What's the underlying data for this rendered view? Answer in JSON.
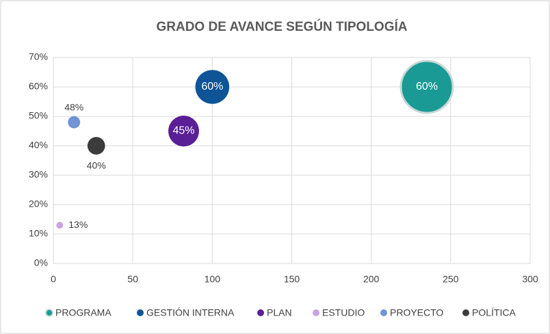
{
  "chart_data": {
    "type": "bubble",
    "title": "GRADO DE AVANCE SEGÚN TIPOLOGÍA",
    "xlim": [
      0,
      300
    ],
    "xticks": [
      0,
      50,
      100,
      150,
      200,
      250,
      300
    ],
    "ylim": [
      0,
      70
    ],
    "yticks": [
      {
        "value": 0,
        "label": "0%"
      },
      {
        "value": 10,
        "label": "10%"
      },
      {
        "value": 20,
        "label": "20%"
      },
      {
        "value": 30,
        "label": "30%"
      },
      {
        "value": 40,
        "label": "40%"
      },
      {
        "value": 50,
        "label": "50%"
      },
      {
        "value": 60,
        "label": "60%"
      },
      {
        "value": 70,
        "label": "70%"
      }
    ],
    "grid": true,
    "legend": "bottom",
    "series": [
      {
        "name": "PROGRAMA",
        "color": "#1a9a94",
        "x": [
          235
        ],
        "values": [
          60
        ],
        "sizes": [
          235
        ],
        "value_labels": [
          "60%"
        ],
        "label_position": "center"
      },
      {
        "name": "GESTIÓN INTERNA",
        "color": "#0e5496",
        "x": [
          100
        ],
        "values": [
          60
        ],
        "sizes": [
          100
        ],
        "value_labels": [
          "60%"
        ],
        "label_position": "center"
      },
      {
        "name": "PLAN",
        "color": "#5a1e96",
        "x": [
          82
        ],
        "values": [
          45
        ],
        "sizes": [
          82
        ],
        "value_labels": [
          "45%"
        ],
        "label_position": "center"
      },
      {
        "name": "ESTUDIO",
        "color": "#c9a3e8",
        "x": [
          4
        ],
        "values": [
          13
        ],
        "sizes": [
          4
        ],
        "value_labels": [
          "13%"
        ],
        "label_position": "right"
      },
      {
        "name": "PROYECTO",
        "color": "#7094d4",
        "x": [
          13
        ],
        "values": [
          48
        ],
        "sizes": [
          13
        ],
        "value_labels": [
          "48%"
        ],
        "label_position": "above"
      },
      {
        "name": "POLÍTICA",
        "color": "#3c3c3c",
        "x": [
          27
        ],
        "values": [
          40
        ],
        "sizes": [
          27
        ],
        "value_labels": [
          "40%"
        ],
        "label_position": "below"
      }
    ]
  }
}
